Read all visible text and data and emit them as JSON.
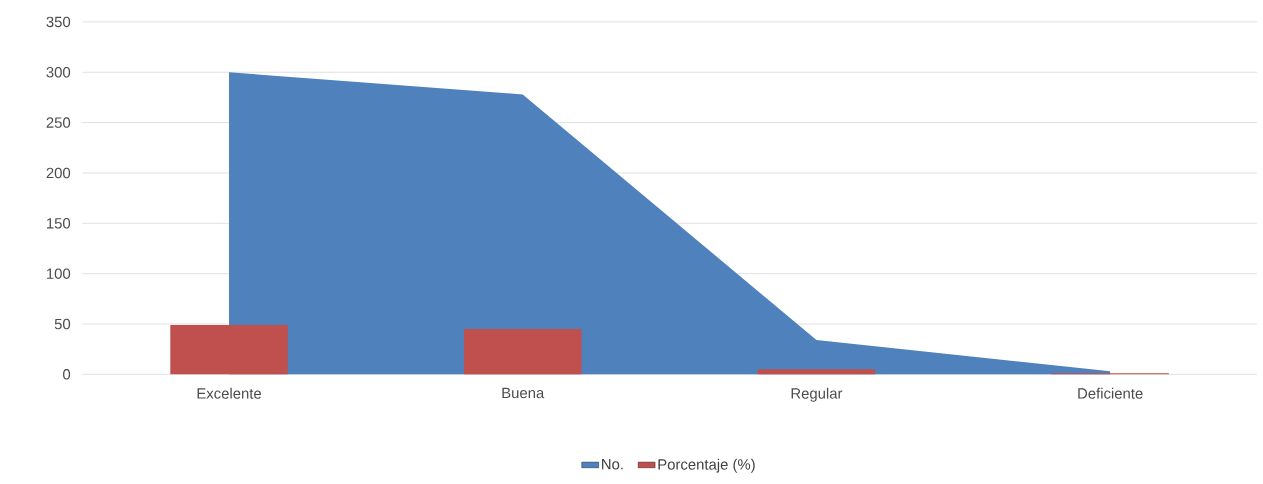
{
  "chart_data": {
    "type": "bar",
    "categories": [
      "Excelente",
      "Buena",
      "Regular",
      "Deficiente"
    ],
    "series": [
      {
        "name": "No.",
        "type": "area",
        "color": "#4f81bd",
        "values": [
          300,
          278,
          34,
          3
        ]
      },
      {
        "name": "Porcentaje (%)",
        "color": "#c0504d",
        "values": [
          49,
          45,
          5,
          1
        ]
      }
    ],
    "ylim": [
      0,
      350
    ],
    "yticks": [
      0,
      50,
      100,
      150,
      200,
      250,
      300,
      350
    ],
    "grid": "y",
    "legend": "bottom"
  }
}
